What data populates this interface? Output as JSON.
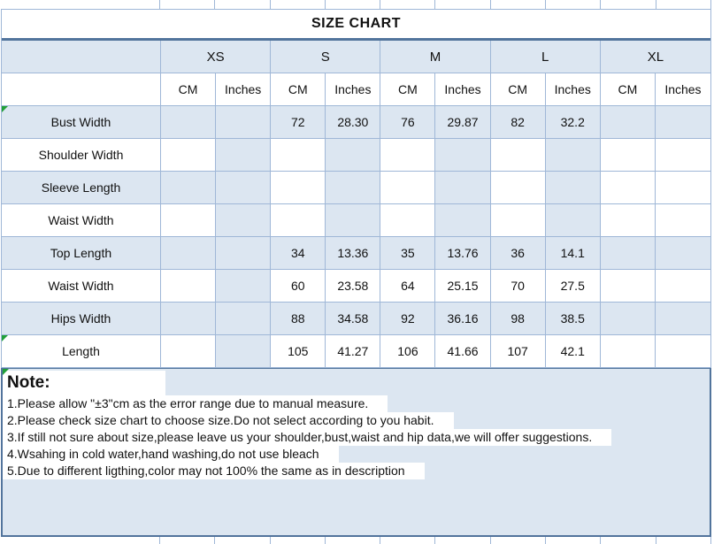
{
  "chart_data": {
    "type": "table",
    "title": "SIZE CHART",
    "size_groups": [
      "XS",
      "S",
      "M",
      "L",
      "XL"
    ],
    "unit_columns": [
      "CM",
      "Inches"
    ],
    "rows": [
      {
        "label": "Bust Width",
        "values": [
          "",
          "",
          "72",
          "28.30",
          "76",
          "29.87",
          "82",
          "32.2",
          "",
          ""
        ]
      },
      {
        "label": "Shoulder Width",
        "values": [
          "",
          "",
          "",
          "",
          "",
          "",
          "",
          "",
          "",
          ""
        ]
      },
      {
        "label": "Sleeve Length",
        "values": [
          "",
          "",
          "",
          "",
          "",
          "",
          "",
          "",
          "",
          ""
        ]
      },
      {
        "label": "Waist Width",
        "values": [
          "",
          "",
          "",
          "",
          "",
          "",
          "",
          "",
          "",
          ""
        ]
      },
      {
        "label": "Top Length",
        "values": [
          "",
          "",
          "34",
          "13.36",
          "35",
          "13.76",
          "36",
          "14.1",
          "",
          ""
        ]
      },
      {
        "label": "Waist Width",
        "values": [
          "",
          "",
          "60",
          "23.58",
          "64",
          "25.15",
          "70",
          "27.5",
          "",
          ""
        ]
      },
      {
        "label": "Hips Width",
        "values": [
          "",
          "",
          "88",
          "34.58",
          "92",
          "36.16",
          "98",
          "38.5",
          "",
          ""
        ]
      },
      {
        "label": "Length",
        "values": [
          "",
          "",
          "105",
          "41.27",
          "106",
          "41.66",
          "107",
          "42.1",
          "",
          ""
        ]
      }
    ]
  },
  "note": {
    "heading": "Note:",
    "lines": [
      "1.Please allow \"±3\"cm as the error range due to manual measure.",
      "2.Please check size chart to choose size.Do not select according to you habit.",
      "3.If still not sure about size,please leave us your shoulder,bust,waist and hip data,we will offer suggestions.",
      "4.Wsahing in cold water,hand washing,do not use bleach",
      "5.Due to different ligthing,color may not 100% the same as in description"
    ]
  },
  "colors": {
    "blue": "#dce6f1",
    "grid": "#9fb7d7",
    "heavy": "#52749c",
    "green": "#21a038",
    "text": "#111111"
  }
}
